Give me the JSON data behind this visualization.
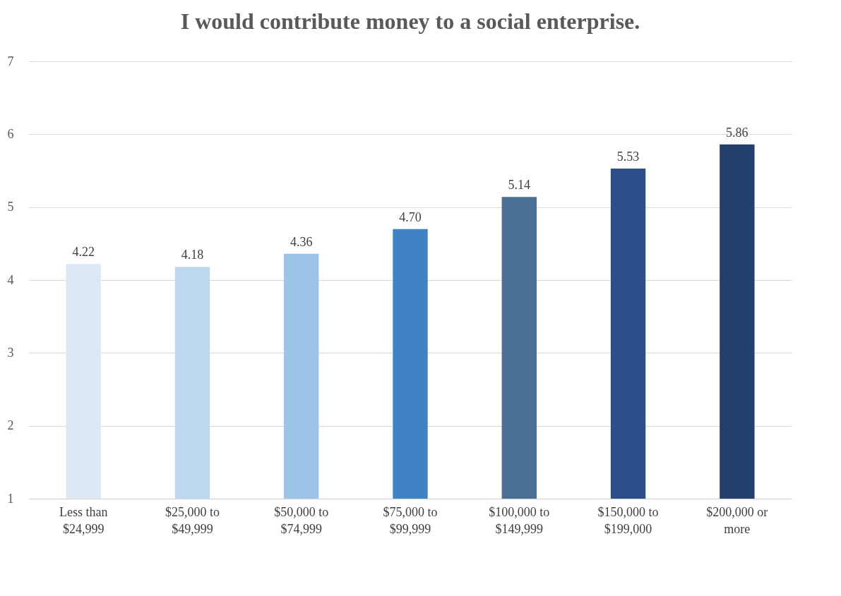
{
  "chart_data": {
    "type": "bar",
    "title": "I would contribute money to a social enterprise.",
    "categories": [
      "Less than $24,999",
      "$25,000 to $49,999",
      "$50,000 to $74,999",
      "$75,000 to $99,999",
      "$100,000 to $149,999",
      "$150,000 to $199,000",
      "$200,000 or more"
    ],
    "values": [
      4.22,
      4.18,
      4.36,
      4.7,
      5.14,
      5.53,
      5.86
    ],
    "colors": [
      "#dde8f5",
      "#bdd7ee",
      "#9dc3e6",
      "#3f83c4",
      "#4a6f94",
      "#2c4f8a",
      "#223f6e"
    ],
    "value_labels": [
      "4.22",
      "4.18",
      "4.36",
      "4.70",
      "5.14",
      "5.53",
      "5.86"
    ],
    "ylim": [
      1,
      7
    ],
    "yticks": [
      1,
      2,
      3,
      4,
      5,
      6,
      7
    ],
    "grid": "y"
  }
}
